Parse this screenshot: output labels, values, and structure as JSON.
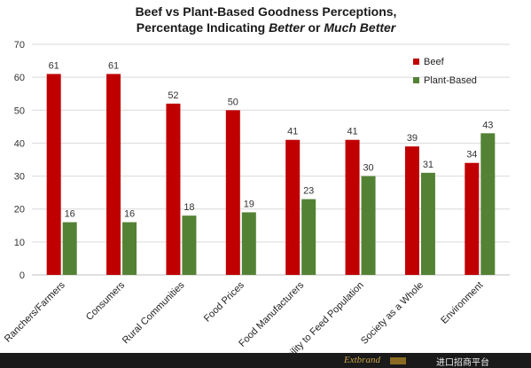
{
  "chart_data": {
    "type": "bar",
    "title_line1": "Beef vs Plant-Based Goodness Perceptions,",
    "title_line2_parts": [
      {
        "text": "Percentage Indicating ",
        "italic": false
      },
      {
        "text": "Better",
        "italic": true
      },
      {
        "text": " or ",
        "italic": false
      },
      {
        "text": "Much Better",
        "italic": true
      }
    ],
    "categories": [
      "Ranchers/Farmers",
      "Consumers",
      "Rural Communities",
      "Food Prices",
      "Food Manufacturers",
      "Ability to Feed Population",
      "Society as a Whole",
      "Environment"
    ],
    "series": [
      {
        "name": "Beef",
        "color": "#c00000",
        "values": [
          61,
          61,
          52,
          50,
          41,
          41,
          39,
          34
        ]
      },
      {
        "name": "Plant-Based",
        "color": "#548235",
        "values": [
          16,
          16,
          18,
          19,
          23,
          30,
          31,
          43
        ]
      }
    ],
    "ylim": [
      0,
      70
    ],
    "yticks": [
      0,
      10,
      20,
      30,
      40,
      50,
      60,
      70
    ],
    "grid": true,
    "legend_position": "top-right"
  },
  "watermark": {
    "brand": "Extbrand",
    "text": "进口招商平台"
  }
}
